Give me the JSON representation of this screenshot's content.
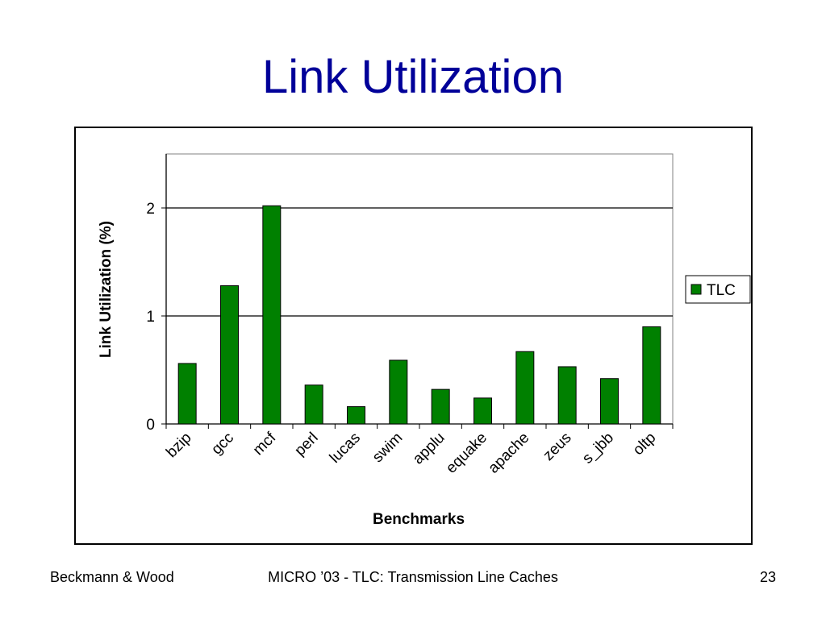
{
  "slide": {
    "title": "Link Utilization",
    "footer_left": "Beckmann & Wood",
    "footer_center": "MICRO ’03 - TLC: Transmission Line Caches",
    "page_number": "23"
  },
  "chart_data": {
    "type": "bar",
    "xlabel": "Benchmarks",
    "ylabel": "Link Utilization (%)",
    "ylim": [
      0,
      2.5
    ],
    "yticks": [
      0,
      1,
      2
    ],
    "grid": true,
    "legend_placement": "right",
    "categories": [
      "bzip",
      "gcc",
      "mcf",
      "perl",
      "lucas",
      "swim",
      "applu",
      "equake",
      "apache",
      "zeus",
      "s_jbb",
      "oltp"
    ],
    "series": [
      {
        "name": "TLC",
        "color": "#008000",
        "values": [
          0.56,
          1.28,
          2.02,
          0.36,
          0.16,
          0.59,
          0.32,
          0.24,
          0.67,
          0.53,
          0.42,
          0.9
        ]
      }
    ]
  }
}
